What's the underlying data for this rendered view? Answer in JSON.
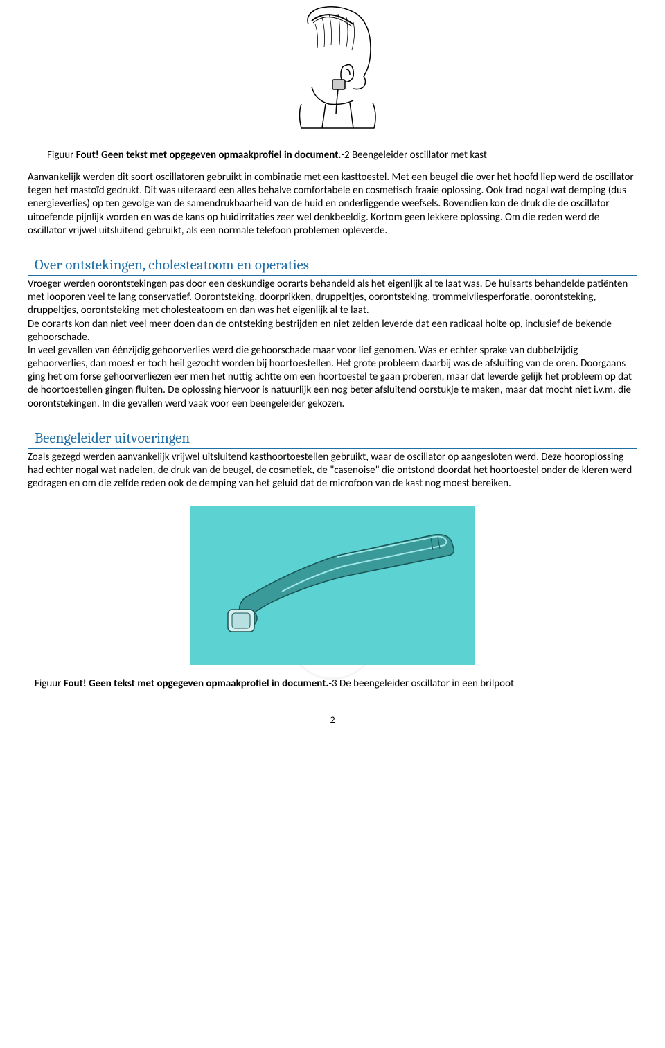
{
  "figure1": {
    "prefix": "Figuur ",
    "bold_text": "Fout! Geen tekst met opgegeven opmaakprofiel in document.",
    "suffix": "-2   Beengeleider oscillator met kast"
  },
  "paragraph1": "Aanvankelijk werden dit soort oscillatoren gebruikt in combinatie met een kasttoestel. Met een beugel die over het hoofd liep werd de oscillator tegen het mastoïd gedrukt. Dit was uiteraard een alles behalve comfortabele en cosmetisch fraaie oplossing. Ook trad nogal wat demping (dus energieverlies) op ten gevolge van de samendrukbaarheid van de huid en onderliggende weefsels. Bovendien kon de druk die de oscillator uitoefende pijnlijk worden en was de kans op huidirritaties zeer wel denkbeeldig. Kortom geen lekkere oplossing. Om die reden werd de oscillator vrijwel uitsluitend gebruikt, als een normale telefoon problemen opleverde.",
  "heading1": "Over ontstekingen, cholesteatoom en operaties",
  "paragraph2": "Vroeger werden oorontstekingen pas door een deskundige oorarts behandeld als het eigenlijk al te laat was. De huisarts behandelde patiënten met looporen veel te lang conservatief. Oorontsteking, doorprikken, druppeltjes, oorontsteking, trommelvliesperforatie, oorontsteking, druppeltjes, oorontsteking met cholesteatoom en dan was het eigenlijk al te laat.\nDe oorarts kon dan niet veel meer doen dan de ontsteking bestrijden en niet zelden leverde dat een radicaal holte op, inclusief de bekende gehoorschade.\nIn veel gevallen van éénzijdig gehoorverlies werd die gehoorschade maar voor lief genomen. Was er echter sprake van dubbelzijdig gehoorverlies, dan moest er toch heil gezocht worden bij hoortoestellen. Het grote probleem daarbij was de afsluiting van de oren. Doorgaans ging het om forse gehoorverliezen eer men het nuttig achtte om een hoortoestel te gaan proberen, maar dat leverde gelijk het probleem op dat de hoortoestellen gingen fluiten. De oplossing hiervoor is natuurlijk een nog beter afsluitend oorstukje te maken, maar dat mocht niet i.v.m. die oorontstekingen. In die gevallen werd vaak voor een beengeleider gekozen.",
  "heading2": "Beengeleider uitvoeringen",
  "paragraph3": "Zoals gezegd werden aanvankelijk vrijwel uitsluitend kasthoortoestellen gebruikt, waar de oscillator op aangesloten werd. Deze hooroplossing had echter nogal wat nadelen, de druk van de beugel, de cosmetiek, de \"casenoise\" die ontstond doordat het hoortoestel onder de kleren werd gedragen en om die zelfde reden ook de demping van het geluid dat de microfoon van de kast nog moest bereiken.",
  "figure2": {
    "prefix": "Figuur ",
    "bold_text": "Fout! Geen tekst met opgegeven opmaakprofiel in document.",
    "suffix": "-3   De beengeleider oscillator in een brilpoot"
  },
  "page_number": "2",
  "colors": {
    "heading": "#1f6ea8",
    "figure_bg": "#5dd2d2",
    "text": "#000000",
    "bg": "#ffffff"
  }
}
